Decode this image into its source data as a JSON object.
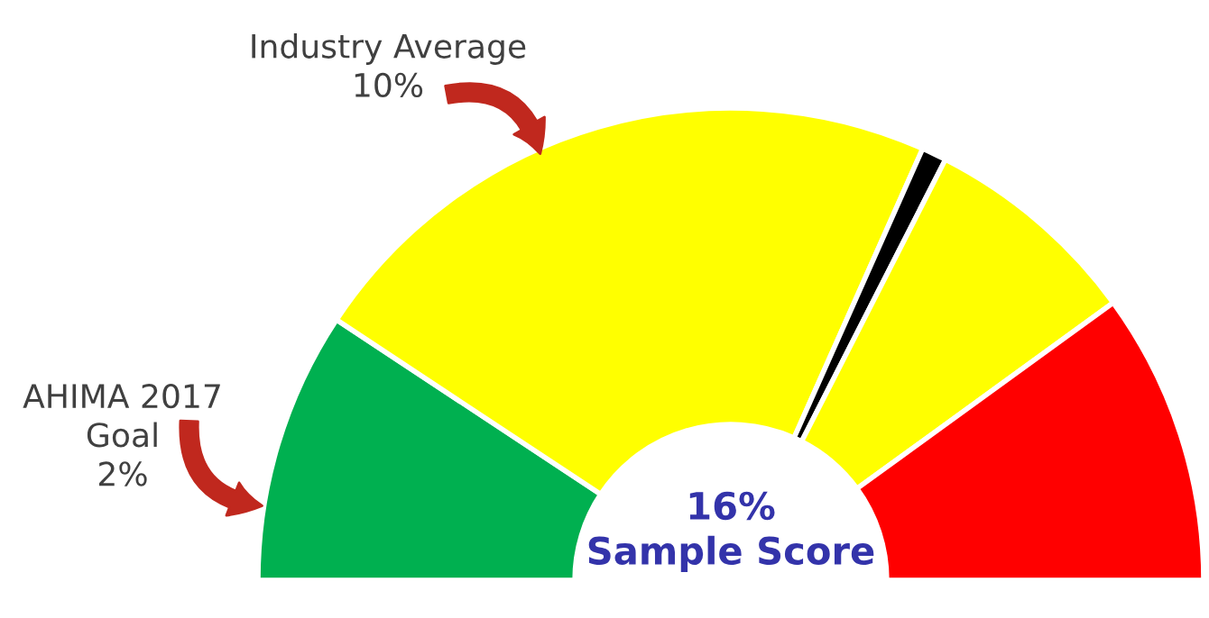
{
  "chart_data": {
    "type": "donut",
    "categories": [
      null,
      null,
      null,
      null,
      null
    ],
    "values": [
      18.6,
      44.7,
      1.7,
      15.0,
      20.0
    ],
    "colors": [
      "#00b050",
      "#ffff00",
      "#000000",
      "#ffff00",
      "#ff0000"
    ],
    "annotations": [
      "Industry Average\n10%",
      "AHIMA 2017\nGoal\n2%",
      "16%\nSample Score"
    ]
  }
}
